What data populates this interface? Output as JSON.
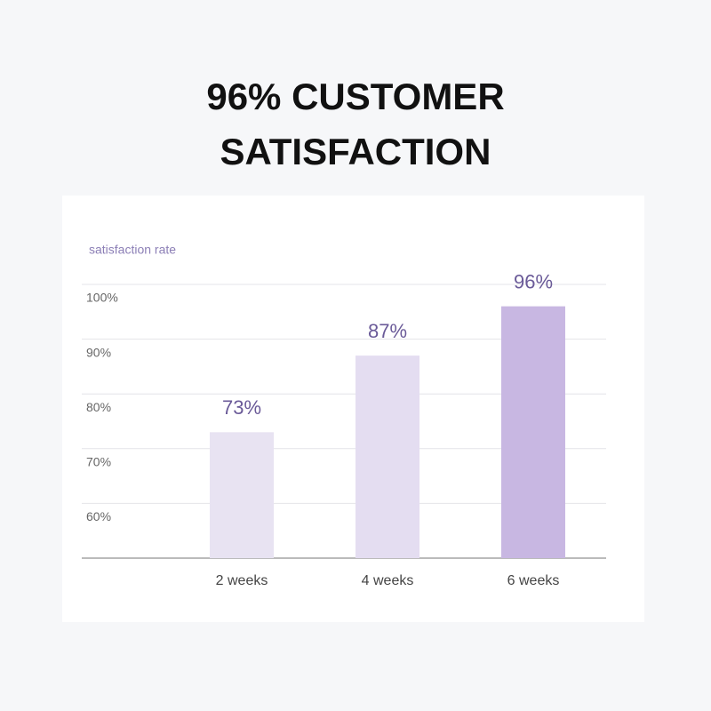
{
  "chart_data": {
    "type": "bar",
    "title": "96% CUSTOMER SATISFACTION",
    "y_label": "satisfaction rate",
    "categories": [
      "2 weeks",
      "4 weeks",
      "6 weeks"
    ],
    "values": [
      73,
      87,
      96
    ],
    "value_labels": [
      "73%",
      "87%",
      "96%"
    ],
    "colors": [
      "#e8e3f2",
      "#e4ddf1",
      "#c8b7e2"
    ],
    "label_color": "#6a5a98",
    "ylim": [
      50,
      100
    ],
    "yticks": [
      {
        "value": 60,
        "label": "60%"
      },
      {
        "value": 70,
        "label": "70%"
      },
      {
        "value": 80,
        "label": "80%"
      },
      {
        "value": 90,
        "label": "90%"
      },
      {
        "value": 100,
        "label": "100%"
      }
    ],
    "grid": true
  }
}
